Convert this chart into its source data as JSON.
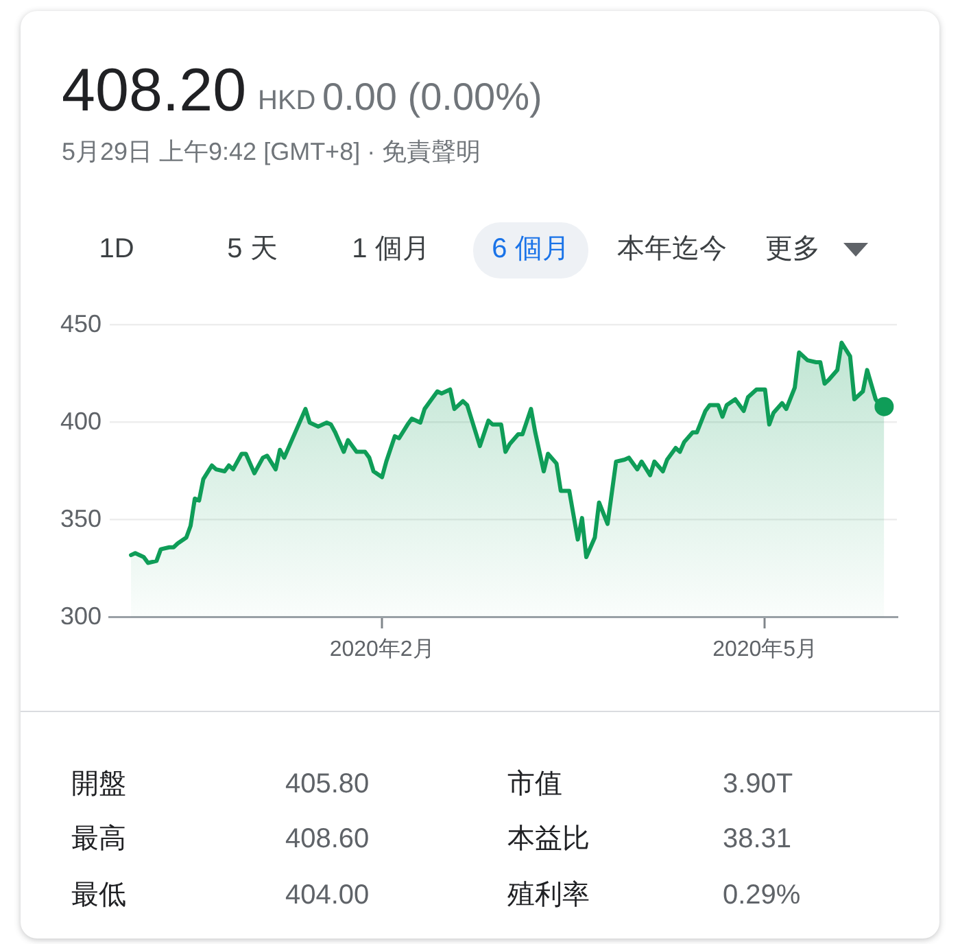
{
  "chart_data": {
    "type": "area",
    "title": "408.20",
    "subtitle": "5月29日 上午9:42 [GMT+8] · 免責聲明",
    "annotations": [
      "HKD",
      "0.00 (0.00%)",
      "1D",
      "5 天",
      "1 個月",
      "6 個月",
      "本年迄今",
      "更多",
      "開盤",
      "405.80",
      "市值",
      "3.90T",
      "最高",
      "408.60",
      "本益比",
      "38.31",
      "最低",
      "404.00",
      "殖利率",
      "0.29%"
    ],
    "xlim": [
      "2019-11-29",
      "2020-06-01"
    ],
    "xticks": [
      {
        "value": "2020-02-01",
        "label": "2020年2月"
      },
      {
        "value": "2020-05-01",
        "label": "2020年5月"
      }
    ],
    "ylim": [
      300,
      450
    ],
    "yticks": [
      300,
      350,
      400,
      450
    ],
    "grid": "y",
    "legend": false,
    "series": [
      {
        "color": "#0f9d58",
        "marker": "none",
        "x": [
          "2019-12-04",
          "2019-12-05",
          "2019-12-07",
          "2019-12-08",
          "2019-12-10",
          "2019-12-11",
          "2019-12-13",
          "2019-12-14",
          "2019-12-15",
          "2019-12-17",
          "2019-12-18",
          "2019-12-19",
          "2019-12-20",
          "2019-12-21",
          "2019-12-23",
          "2019-12-24",
          "2019-12-26",
          "2019-12-27",
          "2019-12-28",
          "2019-12-30",
          "2019-12-31",
          "2020-01-02",
          "2020-01-04",
          "2020-01-05",
          "2020-01-07",
          "2020-01-08",
          "2020-01-09",
          "2020-01-14",
          "2020-01-15",
          "2020-01-17",
          "2020-01-19",
          "2020-01-20",
          "2020-01-21",
          "2020-01-23",
          "2020-01-24",
          "2020-01-26",
          "2020-01-28",
          "2020-01-29",
          "2020-01-30",
          "2020-02-01",
          "2020-02-02",
          "2020-02-04",
          "2020-02-05",
          "2020-02-07",
          "2020-02-08",
          "2020-02-10",
          "2020-02-11",
          "2020-02-12",
          "2020-02-14",
          "2020-02-15",
          "2020-02-17",
          "2020-02-18",
          "2020-02-20",
          "2020-02-21",
          "2020-02-24",
          "2020-02-26",
          "2020-02-27",
          "2020-02-29",
          "2020-03-01",
          "2020-03-02",
          "2020-03-04",
          "2020-03-05",
          "2020-03-07",
          "2020-03-08",
          "2020-03-10",
          "2020-03-11",
          "2020-03-13",
          "2020-03-14",
          "2020-03-16",
          "2020-03-18",
          "2020-03-19",
          "2020-03-20",
          "2020-03-22",
          "2020-03-23",
          "2020-03-25",
          "2020-03-27",
          "2020-03-29",
          "2020-03-30",
          "2020-04-01",
          "2020-04-02",
          "2020-04-04",
          "2020-04-05",
          "2020-04-07",
          "2020-04-08",
          "2020-04-10",
          "2020-04-11",
          "2020-04-12",
          "2020-04-14",
          "2020-04-15",
          "2020-04-17",
          "2020-04-18",
          "2020-04-20",
          "2020-04-21",
          "2020-04-22",
          "2020-04-24",
          "2020-04-26",
          "2020-04-27",
          "2020-04-29",
          "2020-05-01",
          "2020-05-02",
          "2020-05-03",
          "2020-05-05",
          "2020-05-06",
          "2020-05-08",
          "2020-05-09",
          "2020-05-11",
          "2020-05-13",
          "2020-05-14",
          "2020-05-15",
          "2020-05-16",
          "2020-05-18",
          "2020-05-19",
          "2020-05-21",
          "2020-05-22",
          "2020-05-24",
          "2020-05-25",
          "2020-05-27",
          "2020-05-28",
          "2020-05-29"
        ],
        "values": [
          332,
          333,
          331,
          328,
          329,
          335,
          336,
          336,
          338,
          341,
          347,
          361,
          360,
          371,
          378,
          376,
          375,
          378,
          376,
          384,
          384,
          374,
          382,
          383,
          376,
          386,
          382,
          407,
          400,
          398,
          400,
          399,
          395,
          385,
          391,
          385,
          385,
          382,
          375,
          372,
          380,
          393,
          392,
          399,
          402,
          400,
          407,
          410,
          416,
          415,
          417,
          407,
          411,
          409,
          388,
          401,
          399,
          399,
          385,
          389,
          394,
          394,
          407,
          395,
          375,
          384,
          379,
          365,
          365,
          340,
          351,
          331,
          341,
          359,
          348,
          380,
          381,
          382,
          376,
          380,
          373,
          380,
          375,
          381,
          387,
          385,
          390,
          395,
          395,
          406,
          409,
          409,
          403,
          409,
          412,
          406,
          413,
          417,
          417,
          399,
          405,
          410,
          407,
          418,
          436,
          432,
          431,
          431,
          420,
          422,
          427,
          441,
          434,
          412,
          416,
          427,
          412,
          409,
          408.2
        ]
      },
      {
        "type": "scatter",
        "color": "#0f9d58",
        "marker": "circle",
        "x": [
          "2020-05-29"
        ],
        "values": [
          408.2
        ]
      }
    ]
  }
}
